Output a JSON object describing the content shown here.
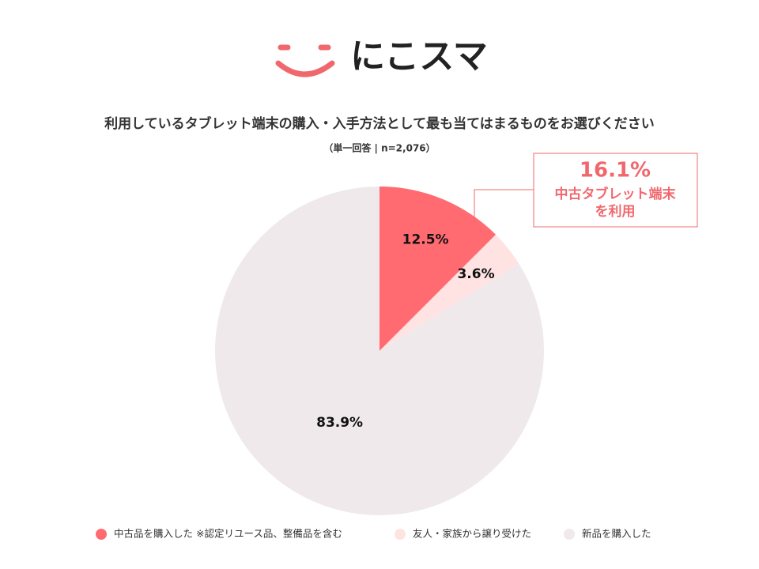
{
  "logo": "にこスマ",
  "chart_data": {
    "type": "pie",
    "title": "利用しているタブレット端末の購入・入手方法として最も当てはまるものをお選びください",
    "subtitle": "（単一回答 | n=2,076）",
    "categories": [
      "中古品を購入した ※認定リユース品、整備品を含む",
      "友人・家族から譲り受けた",
      "新品を購入した"
    ],
    "values": [
      12.5,
      3.6,
      83.9
    ],
    "value_labels": [
      "12.5%",
      "3.6%",
      "83.9%"
    ],
    "colors": [
      "#ff6b70",
      "#ffe3e3",
      "#efe9eb"
    ],
    "annotation": {
      "value": "16.1%",
      "lines": [
        "中古タブレット端末",
        "を利用"
      ],
      "color": "#f0686e"
    }
  }
}
